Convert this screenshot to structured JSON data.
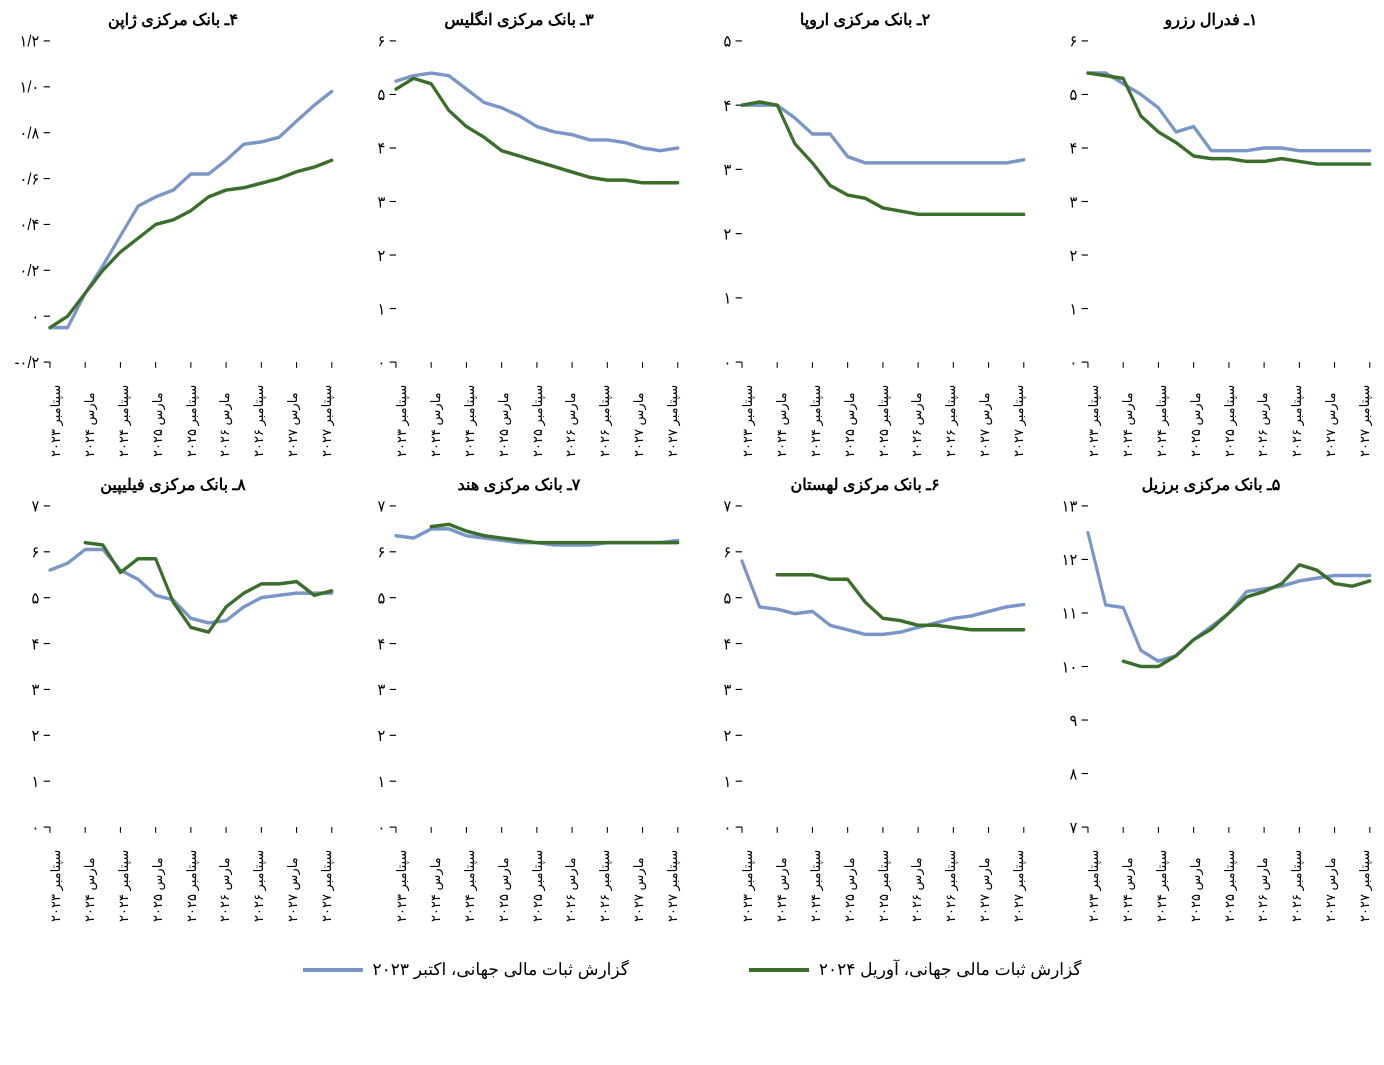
{
  "legend": {
    "series1_label": "گزارش ثبات مالی جهانی، آوریل ۲۰۲۴",
    "series2_label": "گزارش ثبات مالی جهانی، اکتبر ۲۰۲۳"
  },
  "colors": {
    "series1": "#3a6e2a",
    "series2": "#7a96c8",
    "axis": "#000000",
    "bg": "#ffffff"
  },
  "styles": {
    "line_width": 3,
    "title_fontsize": 16,
    "axis_fontsize": 14,
    "xlabel_fontsize": 13
  },
  "x_categories": [
    "سپتامبر ۲۰۲۳",
    "مارس ۲۰۲۴",
    "سپتامبر ۲۰۲۴",
    "مارس ۲۰۲۵",
    "سپتامبر ۲۰۲۵",
    "مارس ۲۰۲۶",
    "سپتامبر ۲۰۲۶",
    "مارس ۲۰۲۷",
    "سپتامبر ۲۰۲۷"
  ],
  "panels": [
    {
      "id": "fed",
      "title": "۱ـ فدرال رزرو",
      "ylim": [
        0,
        6
      ],
      "yticks": [
        0,
        1,
        2,
        3,
        4,
        5,
        6
      ],
      "ytick_labels": [
        "۰",
        "۱",
        "۲",
        "۳",
        "۴",
        "۵",
        "۶"
      ],
      "series1": [
        5.4,
        5.35,
        5.3,
        4.6,
        4.3,
        4.1,
        3.85,
        3.8,
        3.8,
        3.75,
        3.75,
        3.8,
        3.75,
        3.7,
        3.7,
        3.7,
        3.7
      ],
      "series2": [
        5.4,
        5.4,
        5.2,
        5.0,
        4.75,
        4.3,
        4.4,
        3.95,
        3.95,
        3.95,
        4.0,
        4.0,
        3.95,
        3.95,
        3.95,
        3.95,
        3.95
      ]
    },
    {
      "id": "ecb",
      "title": "۲ـ بانک مرکزی اروپا",
      "ylim": [
        0,
        5
      ],
      "yticks": [
        0,
        1,
        2,
        3,
        4,
        5
      ],
      "ytick_labels": [
        "۰",
        "۱",
        "۲",
        "۳",
        "۴",
        "۵"
      ],
      "series1": [
        4.0,
        4.05,
        4.0,
        3.4,
        3.1,
        2.75,
        2.6,
        2.55,
        2.4,
        2.35,
        2.3,
        2.3,
        2.3,
        2.3,
        2.3,
        2.3,
        2.3
      ],
      "series2": [
        4.0,
        4.0,
        4.0,
        3.8,
        3.55,
        3.55,
        3.2,
        3.1,
        3.1,
        3.1,
        3.1,
        3.1,
        3.1,
        3.1,
        3.1,
        3.1,
        3.15
      ]
    },
    {
      "id": "boe",
      "title": "۳ـ بانک مرکزی انگلیس",
      "ylim": [
        0,
        6
      ],
      "yticks": [
        0,
        1,
        2,
        3,
        4,
        5,
        6
      ],
      "ytick_labels": [
        "۰",
        "۱",
        "۲",
        "۳",
        "۴",
        "۵",
        "۶"
      ],
      "series1": [
        5.1,
        5.3,
        5.2,
        4.7,
        4.4,
        4.2,
        3.95,
        3.85,
        3.75,
        3.65,
        3.55,
        3.45,
        3.4,
        3.4,
        3.35,
        3.35,
        3.35
      ],
      "series2": [
        5.25,
        5.35,
        5.4,
        5.35,
        5.1,
        4.85,
        4.75,
        4.6,
        4.4,
        4.3,
        4.25,
        4.15,
        4.15,
        4.1,
        4.0,
        3.95,
        4.0
      ]
    },
    {
      "id": "boj",
      "title": "۴ـ بانک مرکزی ژاپن",
      "ylim": [
        -0.2,
        1.2
      ],
      "yticks": [
        -0.2,
        0,
        0.2,
        0.4,
        0.6,
        0.8,
        1.0,
        1.2
      ],
      "ytick_labels": [
        "-۰/۲",
        "۰",
        "۰/۲",
        "۰/۴",
        "۰/۶",
        "۰/۸",
        "۱/۰",
        "۱/۲"
      ],
      "series1": [
        -0.05,
        0.0,
        0.1,
        0.2,
        0.28,
        0.34,
        0.4,
        0.42,
        0.46,
        0.52,
        0.55,
        0.56,
        0.58,
        0.6,
        0.63,
        0.65,
        0.68
      ],
      "series2": [
        -0.05,
        -0.05,
        0.1,
        0.22,
        0.35,
        0.48,
        0.52,
        0.55,
        0.62,
        0.62,
        0.68,
        0.75,
        0.76,
        0.78,
        0.85,
        0.92,
        0.98
      ]
    },
    {
      "id": "brazil",
      "title": "۵ـ بانک مرکزی برزیل",
      "ylim": [
        7,
        13
      ],
      "yticks": [
        7,
        8,
        9,
        10,
        11,
        12,
        13
      ],
      "ytick_labels": [
        "۷",
        "۸",
        "۹",
        "۱۰",
        "۱۱",
        "۱۲",
        "۱۳"
      ],
      "series1": [
        null,
        null,
        10.1,
        10.0,
        10.0,
        10.2,
        10.5,
        10.7,
        11.0,
        11.3,
        11.4,
        11.55,
        11.9,
        11.8,
        11.55,
        11.5,
        11.6
      ],
      "series2": [
        12.5,
        11.15,
        11.1,
        10.3,
        10.1,
        10.2,
        10.5,
        10.75,
        11.0,
        11.4,
        11.45,
        11.5,
        11.6,
        11.65,
        11.7,
        11.7,
        11.7
      ]
    },
    {
      "id": "poland",
      "title": "۶ـ بانک مرکزی لهستان",
      "ylim": [
        0,
        7
      ],
      "yticks": [
        0,
        1,
        2,
        3,
        4,
        5,
        6,
        7
      ],
      "ytick_labels": [
        "۰",
        "۱",
        "۲",
        "۳",
        "۴",
        "۵",
        "۶",
        "۷"
      ],
      "series1": [
        null,
        null,
        5.5,
        5.5,
        5.5,
        5.4,
        5.4,
        4.9,
        4.55,
        4.5,
        4.4,
        4.4,
        4.35,
        4.3,
        4.3,
        4.3,
        4.3
      ],
      "series2": [
        5.8,
        4.8,
        4.75,
        4.65,
        4.7,
        4.4,
        4.3,
        4.2,
        4.2,
        4.25,
        4.35,
        4.45,
        4.55,
        4.6,
        4.7,
        4.8,
        4.85
      ]
    },
    {
      "id": "india",
      "title": "۷ـ بانک مرکزی هند",
      "ylim": [
        0,
        7
      ],
      "yticks": [
        0,
        1,
        2,
        3,
        4,
        5,
        6,
        7
      ],
      "ytick_labels": [
        "۰",
        "۱",
        "۲",
        "۳",
        "۴",
        "۵",
        "۶",
        "۷"
      ],
      "series1": [
        null,
        null,
        6.55,
        6.6,
        6.45,
        6.35,
        6.3,
        6.25,
        6.2,
        6.2,
        6.2,
        6.2,
        6.2,
        6.2,
        6.2,
        6.2,
        6.2
      ],
      "series2": [
        6.35,
        6.3,
        6.5,
        6.5,
        6.35,
        6.3,
        6.25,
        6.2,
        6.2,
        6.15,
        6.15,
        6.15,
        6.2,
        6.2,
        6.2,
        6.2,
        6.25
      ]
    },
    {
      "id": "philippines",
      "title": "۸ـ بانک مرکزی فیلیپین",
      "ylim": [
        0,
        7
      ],
      "yticks": [
        0,
        1,
        2,
        3,
        4,
        5,
        6,
        7
      ],
      "ytick_labels": [
        "۰",
        "۱",
        "۲",
        "۳",
        "۴",
        "۵",
        "۶",
        "۷"
      ],
      "series1": [
        null,
        null,
        6.2,
        6.15,
        5.55,
        5.85,
        5.85,
        4.9,
        4.35,
        4.25,
        4.8,
        5.1,
        5.3,
        5.3,
        5.35,
        5.05,
        5.15
      ],
      "series2": [
        5.6,
        5.75,
        6.05,
        6.05,
        5.6,
        5.4,
        5.05,
        4.95,
        4.55,
        4.45,
        4.5,
        4.8,
        5.0,
        5.05,
        5.1,
        5.1,
        5.1
      ]
    }
  ]
}
